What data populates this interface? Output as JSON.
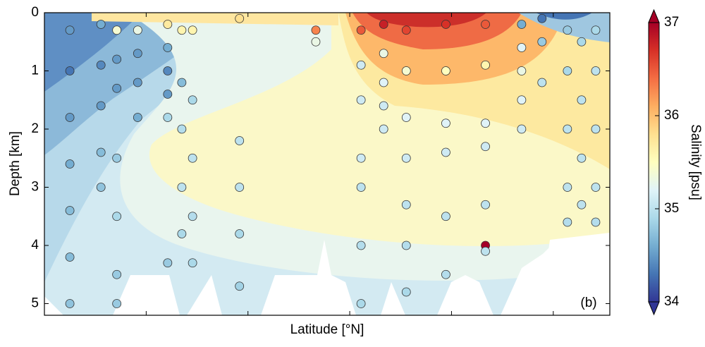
{
  "chart_data": {
    "type": "contour-scatter",
    "panel_label": "(b)",
    "xlabel": "Latitude [°N]",
    "ylabel": "Depth [km]",
    "ylim": [
      0,
      5.2
    ],
    "yticks": [
      0,
      1,
      2,
      3,
      4,
      5
    ],
    "y_inverted": true,
    "colorbar_label": "Salinity [psu]",
    "clim": [
      34,
      37
    ],
    "cticks": [
      34,
      35,
      36,
      37
    ],
    "colormap": [
      "#313695",
      "#4575b4",
      "#74add1",
      "#abd9e9",
      "#e0f3f8",
      "#ffffbf",
      "#fee090",
      "#fdae61",
      "#f46d43",
      "#d73027",
      "#a50026"
    ],
    "stations": [
      {
        "x": 0.045,
        "depth": [
          0.3,
          1,
          1.8,
          2.6,
          3.4,
          4.2,
          5.0
        ],
        "salinity": [
          34.5,
          34.3,
          34.5,
          34.6,
          34.7,
          34.7,
          34.75
        ]
      },
      {
        "x": 0.1,
        "depth": [
          0.2,
          0.9,
          1.6,
          2.4,
          3.0
        ],
        "salinity": [
          34.6,
          34.4,
          34.5,
          34.7,
          34.75
        ]
      },
      {
        "x": 0.128,
        "depth": [
          0.3,
          0.8,
          1.3,
          2.5,
          3.5,
          4.5,
          5.0
        ],
        "salinity": [
          35.4,
          34.5,
          34.5,
          34.8,
          34.9,
          34.8,
          34.8
        ]
      },
      {
        "x": 0.165,
        "depth": [
          0.3,
          0.7,
          1.2,
          1.8
        ],
        "salinity": [
          35.3,
          34.5,
          34.5,
          34.6
        ]
      },
      {
        "x": 0.218,
        "depth": [
          0.2,
          0.6,
          1.0,
          1.4,
          1.8,
          4.3
        ],
        "salinity": [
          35.7,
          34.6,
          34.4,
          34.5,
          34.9,
          34.8
        ]
      },
      {
        "x": 0.243,
        "depth": [
          0.3,
          1.2,
          2.0,
          3.0,
          3.8
        ],
        "salinity": [
          35.6,
          34.7,
          34.95,
          35.0,
          34.9
        ]
      },
      {
        "x": 0.262,
        "depth": [
          0.3,
          1.5,
          2.5,
          3.5,
          4.3
        ],
        "salinity": [
          35.6,
          34.9,
          35.0,
          34.95,
          34.9
        ]
      },
      {
        "x": 0.345,
        "depth": [
          0.1,
          2.2,
          3.0,
          3.8,
          4.7
        ],
        "salinity": [
          35.8,
          35.0,
          35.0,
          34.9,
          34.85
        ]
      },
      {
        "x": 0.48,
        "depth": [
          0.3,
          0.5
        ],
        "salinity": [
          36.3,
          35.3
        ]
      },
      {
        "x": 0.56,
        "depth": [
          0.3,
          0.9,
          1.5,
          2.5,
          3.0,
          4.0,
          5.0
        ],
        "salinity": [
          36.5,
          35.1,
          35.1,
          35.1,
          35.0,
          34.95,
          34.9
        ]
      },
      {
        "x": 0.6,
        "depth": [
          0.2,
          0.7,
          1.2,
          1.6,
          2.0
        ],
        "salinity": [
          36.8,
          35.3,
          35.2,
          35.1,
          35.1
        ]
      },
      {
        "x": 0.64,
        "depth": [
          0.3,
          1.0,
          1.8,
          2.5,
          3.3,
          4.0,
          4.8
        ],
        "salinity": [
          36.6,
          35.4,
          35.2,
          35.1,
          35.0,
          34.95,
          34.9
        ]
      },
      {
        "x": 0.71,
        "depth": [
          0.2,
          1.0,
          1.9,
          2.4,
          3.5,
          4.5
        ],
        "salinity": [
          36.7,
          35.5,
          35.2,
          35.1,
          35.0,
          34.95
        ]
      },
      {
        "x": 0.78,
        "depth": [
          0.2,
          0.9,
          1.9,
          2.3,
          3.3,
          4.0,
          4.1
        ],
        "salinity": [
          36.5,
          35.6,
          35.2,
          35.1,
          35.0,
          37.0,
          35.0
        ]
      },
      {
        "x": 0.844,
        "depth": [
          0.2,
          0.6,
          1.0,
          1.5,
          2.0
        ],
        "salinity": [
          34.6,
          35.2,
          35.3,
          35.2,
          35.1
        ]
      },
      {
        "x": 0.88,
        "depth": [
          0.1,
          0.5,
          1.2
        ],
        "salinity": [
          34.3,
          34.8,
          35.0
        ]
      },
      {
        "x": 0.925,
        "depth": [
          0.3,
          1.0,
          2.0,
          3.0,
          3.6
        ],
        "salinity": [
          34.8,
          34.9,
          35.0,
          35.0,
          34.95
        ]
      },
      {
        "x": 0.95,
        "depth": [
          0.5,
          1.5,
          2.5,
          3.3
        ],
        "salinity": [
          34.9,
          35.0,
          35.0,
          35.0
        ]
      },
      {
        "x": 0.975,
        "depth": [
          0.3,
          1.0,
          2.0,
          3.0,
          3.6
        ],
        "salinity": [
          34.9,
          35.0,
          35.0,
          35.0,
          34.95
        ]
      }
    ]
  }
}
